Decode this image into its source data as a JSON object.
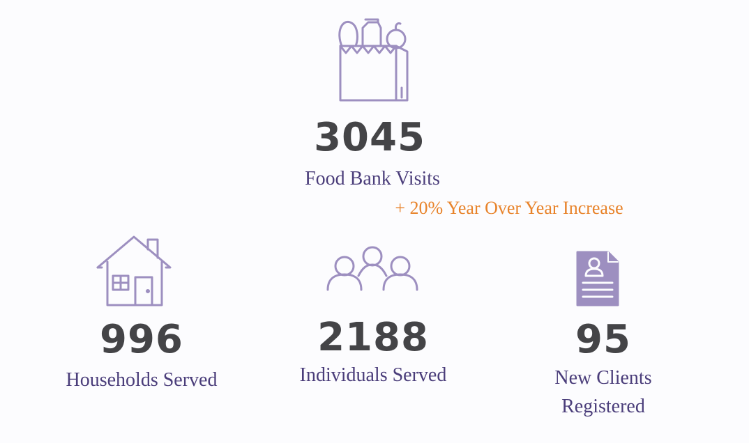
{
  "stats": [
    {
      "value": 3045,
      "label": "Food Bank Visits",
      "note": "+ 20% Year Over Year Increase"
    },
    {
      "value": 996,
      "label": "Households Served"
    },
    {
      "value": 2188,
      "label": "Individuals Served"
    },
    {
      "value": 95,
      "label": "New Clients Registered"
    }
  ]
}
